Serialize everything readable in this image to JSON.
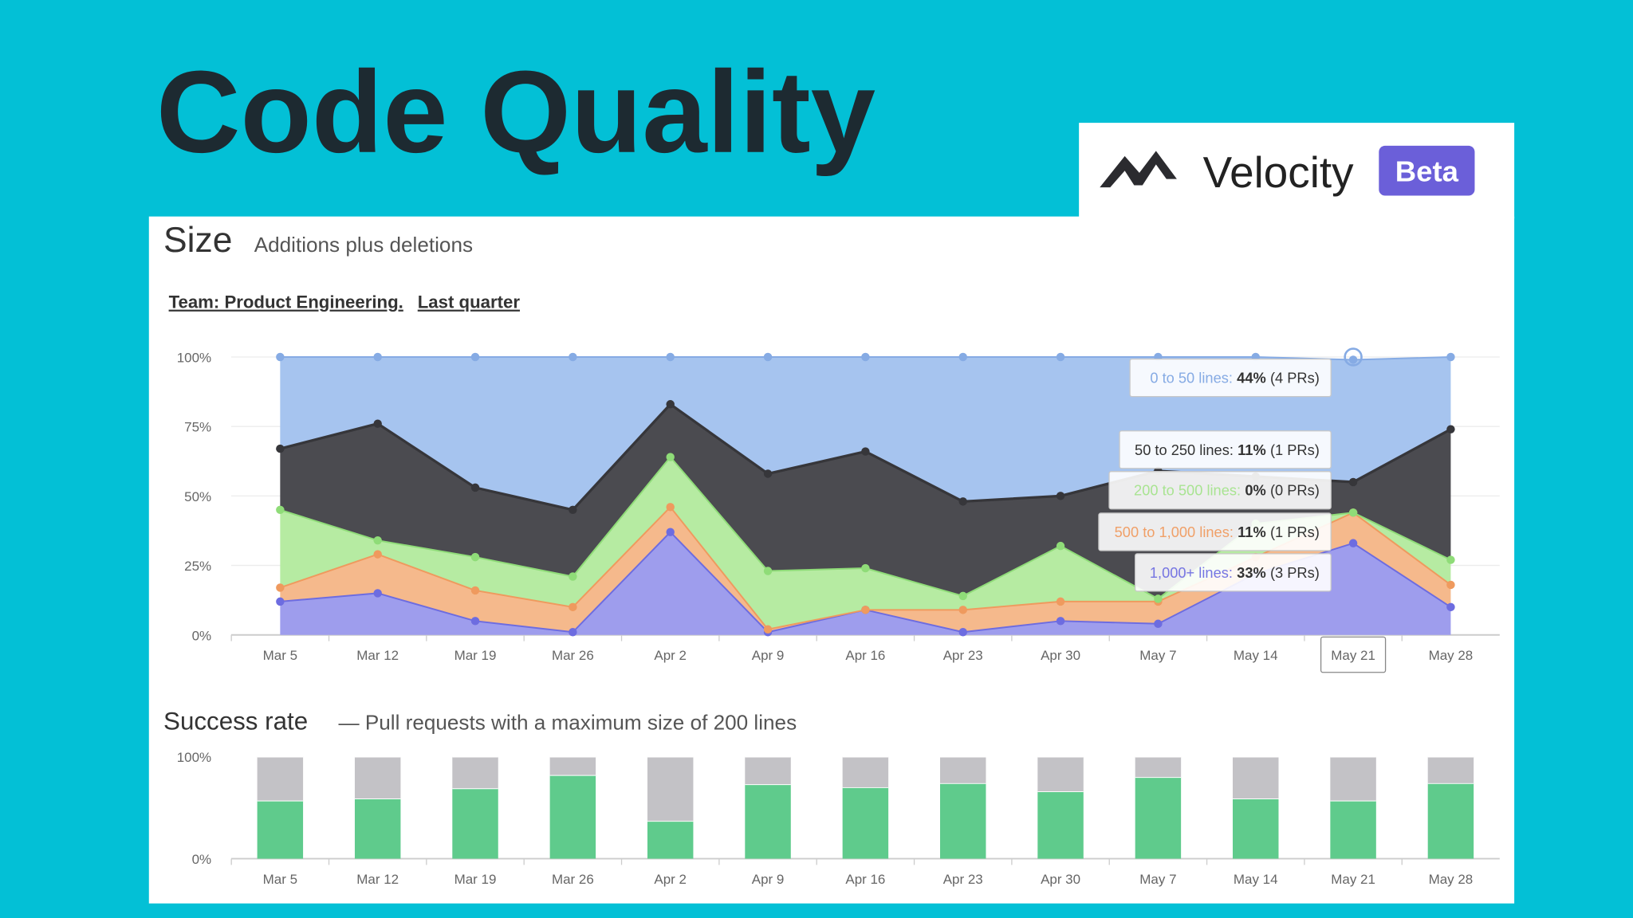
{
  "slide": {
    "title": "Code Quality",
    "brand": "Velocity",
    "badge": "Beta"
  },
  "chart_data": [
    {
      "type": "area",
      "stacked": true,
      "title": "Size",
      "subtitle": "Additions plus deletions",
      "filters": [
        "Team: Product Engineering.",
        "Last quarter"
      ],
      "categories": [
        "Mar 5",
        "Mar 12",
        "Mar 19",
        "Mar 26",
        "Apr 2",
        "Apr 9",
        "Apr 16",
        "Apr 23",
        "Apr 30",
        "May 7",
        "May 14",
        "May 21",
        "May 28"
      ],
      "series": [
        {
          "color": "#9e9ded",
          "line_color": "#6d6ce0",
          "values": [
            12,
            15,
            5,
            1,
            37,
            1,
            9,
            1,
            5,
            4,
            22,
            33,
            10
          ]
        },
        {
          "color": "#f5b98c",
          "line_color": "#ef9a5e",
          "values": [
            5,
            14,
            11,
            9,
            9,
            1,
            0,
            8,
            7,
            8,
            6,
            11,
            8
          ]
        },
        {
          "color": "#b6eba2",
          "line_color": "#8fdc78",
          "values": [
            28,
            5,
            12,
            11,
            18,
            21,
            15,
            5,
            20,
            1,
            12,
            0,
            9
          ]
        },
        {
          "color": "#4b4b50",
          "line_color": "#36363a",
          "values": [
            22,
            42,
            25,
            24,
            19,
            35,
            42,
            34,
            18,
            46,
            17,
            11,
            47
          ]
        },
        {
          "color": "#a6c4ef",
          "line_color": "#86abe4",
          "values": [
            33,
            24,
            47,
            55,
            17,
            42,
            34,
            52,
            50,
            41,
            43,
            44,
            26
          ]
        }
      ],
      "ylim": [
        0,
        100
      ],
      "yticks": [
        {
          "value": 0,
          "label": "0%"
        },
        {
          "value": 25,
          "label": "25%"
        },
        {
          "value": 50,
          "label": "50%"
        },
        {
          "value": 75,
          "label": "75%"
        },
        {
          "value": 100,
          "label": "100%"
        }
      ],
      "grid": true,
      "tooltip": [
        {
          "label": "0 to 50 lines:",
          "value": "44%",
          "count": "(4 PRs)",
          "color": "#86abe4"
        },
        {
          "label": "50 to 250 lines:",
          "value": "11%",
          "count": "(1 PRs)",
          "color": "#333333"
        },
        {
          "label": "200 to 500 lines:",
          "value": "0%",
          "count": "(0 PRs)",
          "color": "#a9e492"
        },
        {
          "label": "500 to 1,000 lines:",
          "value": "11%",
          "count": "(1 PRs)",
          "color": "#f0a068"
        },
        {
          "label": "1,000+ lines:",
          "value": "33%",
          "count": "(3 PRs)",
          "color": "#7675e2"
        }
      ]
    },
    {
      "type": "bar",
      "stacked": true,
      "title": "Success rate",
      "subtitle": "— Pull requests with a maximum size of 200 lines",
      "categories": [
        "Mar 5",
        "Mar 12",
        "Mar 19",
        "Mar 26",
        "Apr 2",
        "Apr 9",
        "Apr 16",
        "Apr 23",
        "Apr 30",
        "May 7",
        "May 14",
        "May 21",
        "May 28"
      ],
      "series": [
        {
          "color": "#5fcb8c",
          "values": [
            57,
            59,
            69,
            82,
            37,
            73,
            70,
            74,
            66,
            80,
            59,
            57,
            74
          ]
        },
        {
          "color": "#c3c2c6",
          "values": [
            43,
            41,
            31,
            18,
            63,
            27,
            30,
            26,
            34,
            20,
            41,
            43,
            26
          ]
        }
      ],
      "ylim": [
        0,
        100
      ],
      "yticks": [
        {
          "value": 0,
          "label": "0%"
        },
        {
          "value": 100,
          "label": "100%"
        }
      ]
    }
  ]
}
